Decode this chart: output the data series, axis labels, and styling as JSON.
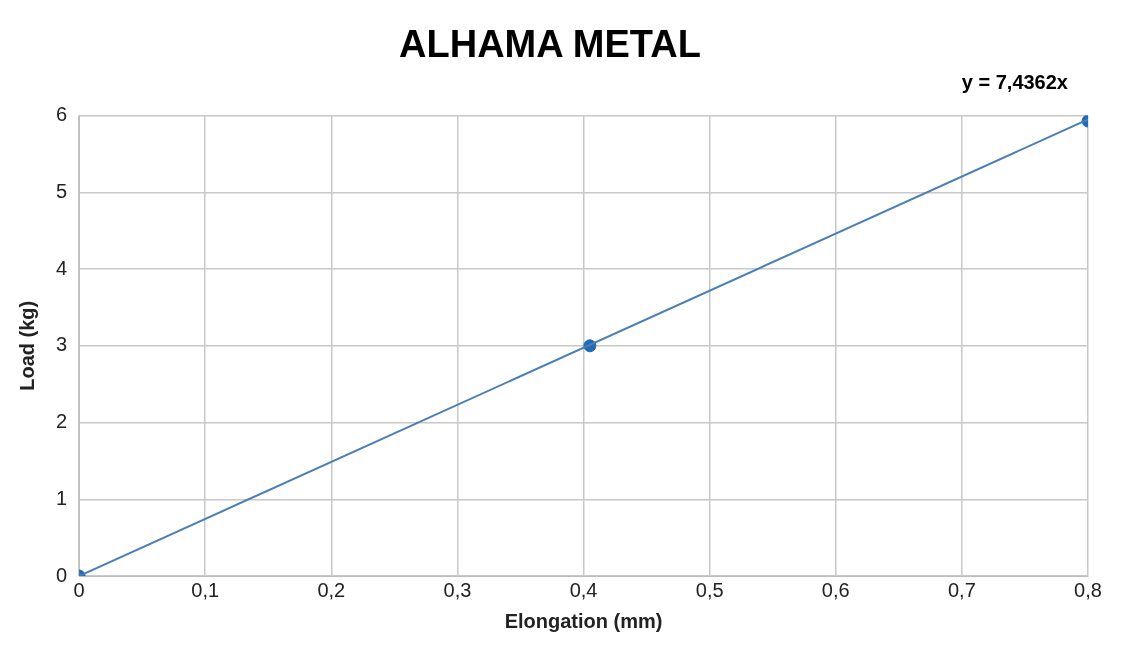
{
  "chart_data": {
    "type": "scatter",
    "title": "ALHAMA METAL",
    "xlabel": "Elongation (mm)",
    "ylabel": "Load (kg)",
    "annotations": [
      "y = 7,4362x"
    ],
    "xlim": [
      0,
      0.8
    ],
    "xticks": [
      0,
      {
        "value": 0.1,
        "label": "0,1"
      },
      {
        "value": 0.2,
        "label": "0,2"
      },
      {
        "value": 0.3,
        "label": "0,3"
      },
      {
        "value": 0.4,
        "label": "0,4"
      },
      {
        "value": 0.5,
        "label": "0,5"
      },
      {
        "value": 0.6,
        "label": "0,6"
      },
      {
        "value": 0.7,
        "label": "0,7"
      },
      {
        "value": 0.8,
        "label": "0,8"
      }
    ],
    "ylim": [
      0,
      6
    ],
    "yticks": [
      0,
      1,
      2,
      3,
      4,
      5,
      6
    ],
    "grid": true,
    "legend": false,
    "series": [
      {
        "type": "line",
        "color": "#4a7eb4",
        "x": [
          0,
          0.8
        ],
        "values": [
          0,
          5.95
        ],
        "marker": "none",
        "line_style": "solid"
      },
      {
        "type": "scatter",
        "color": "#1f6bb5",
        "x": [
          0,
          0.405,
          0.8
        ],
        "values": [
          0,
          3,
          5.93
        ],
        "marker": "circle"
      }
    ]
  }
}
